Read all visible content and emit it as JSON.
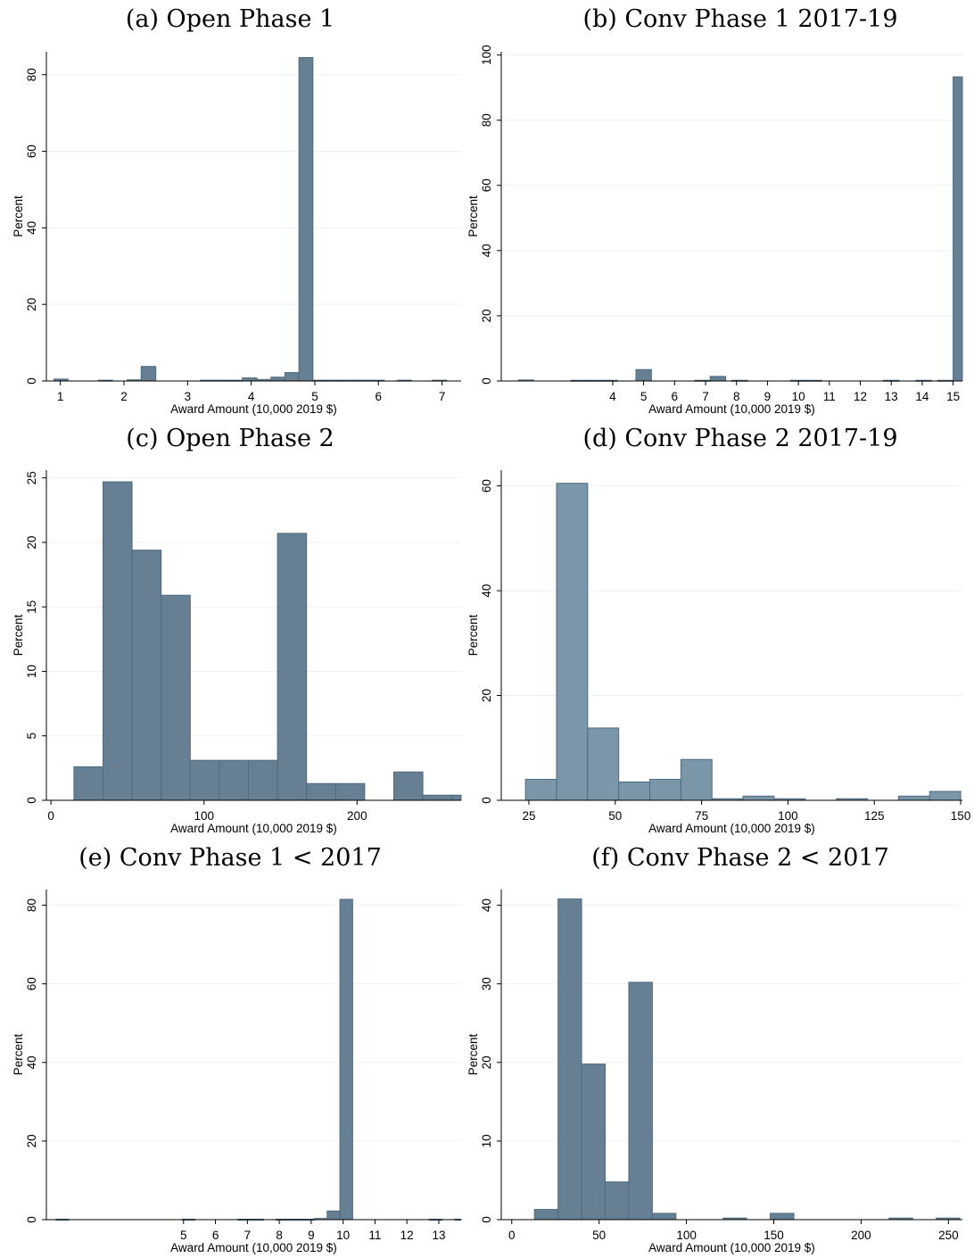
{
  "colors": {
    "bar_dark": "#667f93",
    "bar_light": "#7b96a9",
    "bar_edge": "#4f6b80",
    "grid": "#eef1f3",
    "background": "#ffffff"
  },
  "chart_data": [
    {
      "id": "a",
      "type": "bar",
      "title": "(a) Open Phase 1",
      "xlabel": "Award Amount (10,000 2019 $)",
      "ylabel": "Percent",
      "xlim": [
        0.78,
        7.3
      ],
      "ylim": [
        0,
        86
      ],
      "xticks": [
        1,
        2,
        3,
        4,
        5,
        6,
        7
      ],
      "yticks": [
        0,
        20,
        40,
        60,
        80
      ],
      "grid": true,
      "color": "#667f93",
      "bins": [
        {
          "x0": 0.9,
          "x1": 1.12,
          "y": 0.5
        },
        {
          "x0": 1.6,
          "x1": 1.82,
          "y": 0.2
        },
        {
          "x0": 2.05,
          "x1": 2.27,
          "y": 0.3
        },
        {
          "x0": 2.27,
          "x1": 2.5,
          "y": 3.8
        },
        {
          "x0": 3.2,
          "x1": 3.42,
          "y": 0.2
        },
        {
          "x0": 3.42,
          "x1": 3.64,
          "y": 0.2
        },
        {
          "x0": 3.64,
          "x1": 3.86,
          "y": 0.2
        },
        {
          "x0": 3.86,
          "x1": 4.09,
          "y": 0.8
        },
        {
          "x0": 4.09,
          "x1": 4.31,
          "y": 0.4
        },
        {
          "x0": 4.31,
          "x1": 4.53,
          "y": 1.0
        },
        {
          "x0": 4.53,
          "x1": 4.75,
          "y": 2.2
        },
        {
          "x0": 4.75,
          "x1": 4.97,
          "y": 84.5
        },
        {
          "x0": 4.97,
          "x1": 5.2,
          "y": 0.2
        },
        {
          "x0": 5.2,
          "x1": 5.42,
          "y": 0.2
        },
        {
          "x0": 5.42,
          "x1": 5.64,
          "y": 0.2
        },
        {
          "x0": 5.64,
          "x1": 5.86,
          "y": 0.2
        },
        {
          "x0": 5.86,
          "x1": 6.09,
          "y": 0.2
        },
        {
          "x0": 6.3,
          "x1": 6.52,
          "y": 0.2
        },
        {
          "x0": 6.85,
          "x1": 7.07,
          "y": 0.2
        }
      ]
    },
    {
      "id": "b",
      "type": "bar",
      "title": "(b) Conv Phase 1 2017-19",
      "xlabel": "Award Amount (10,000 2019 $)",
      "ylabel": "Percent",
      "xlim": [
        0.4,
        15.3
      ],
      "ylim": [
        0,
        101
      ],
      "xticks": [
        4,
        5,
        6,
        7,
        8,
        9,
        10,
        11,
        12,
        13,
        14,
        15
      ],
      "yticks": [
        0,
        20,
        40,
        60,
        80,
        100
      ],
      "grid": true,
      "color": "#667f93",
      "bins": [
        {
          "x0": 0.95,
          "x1": 1.45,
          "y": 0.3
        },
        {
          "x0": 2.65,
          "x1": 3.15,
          "y": 0.2
        },
        {
          "x0": 3.15,
          "x1": 3.65,
          "y": 0.2
        },
        {
          "x0": 3.65,
          "x1": 4.15,
          "y": 0.2
        },
        {
          "x0": 4.75,
          "x1": 5.25,
          "y": 3.5
        },
        {
          "x0": 6.65,
          "x1": 7.15,
          "y": 0.2
        },
        {
          "x0": 7.15,
          "x1": 7.65,
          "y": 1.4
        },
        {
          "x0": 7.85,
          "x1": 8.35,
          "y": 0.2
        },
        {
          "x0": 9.75,
          "x1": 10.25,
          "y": 0.2
        },
        {
          "x0": 10.25,
          "x1": 10.75,
          "y": 0.2
        },
        {
          "x0": 12.75,
          "x1": 13.25,
          "y": 0.2
        },
        {
          "x0": 13.8,
          "x1": 14.3,
          "y": 0.2
        },
        {
          "x0": 14.5,
          "x1": 15.0,
          "y": 0.2
        },
        {
          "x0": 15.0,
          "x1": 15.5,
          "y": 93.3
        }
      ]
    },
    {
      "id": "c",
      "type": "bar",
      "title": "(c) Open Phase 2",
      "xlabel": "Award Amount (10,000 2019 $)",
      "ylabel": "Percent",
      "xlim": [
        -3,
        268
      ],
      "ylim": [
        0,
        25.6
      ],
      "xticks": [
        0,
        100,
        200
      ],
      "yticks": [
        0,
        5,
        10,
        15,
        20,
        25
      ],
      "grid": true,
      "color": "#667f93",
      "bins": [
        {
          "x0": 15,
          "x1": 34,
          "y": 2.6
        },
        {
          "x0": 34,
          "x1": 53,
          "y": 24.7
        },
        {
          "x0": 53,
          "x1": 72,
          "y": 19.4
        },
        {
          "x0": 72,
          "x1": 91,
          "y": 15.9
        },
        {
          "x0": 91,
          "x1": 110,
          "y": 3.1
        },
        {
          "x0": 110,
          "x1": 129,
          "y": 3.1
        },
        {
          "x0": 129,
          "x1": 148,
          "y": 3.1
        },
        {
          "x0": 148,
          "x1": 167,
          "y": 20.7
        },
        {
          "x0": 167,
          "x1": 186,
          "y": 1.3
        },
        {
          "x0": 186,
          "x1": 205,
          "y": 1.3
        },
        {
          "x0": 224,
          "x1": 243,
          "y": 2.2
        },
        {
          "x0": 243,
          "x1": 262,
          "y": 0.4
        },
        {
          "x0": 262,
          "x1": 281,
          "y": 0.4
        }
      ]
    },
    {
      "id": "d",
      "type": "bar",
      "title": "(d) Conv Phase 2 2017-19",
      "xlabel": "Award Amount (10,000 2019 $)",
      "ylabel": "Percent",
      "xlim": [
        17,
        150.5
      ],
      "ylim": [
        0,
        63
      ],
      "xticks": [
        25,
        50,
        75,
        100,
        125,
        150
      ],
      "yticks": [
        0,
        20,
        40,
        60
      ],
      "grid": true,
      "color": "#7b96a9",
      "bins": [
        {
          "x0": 24,
          "x1": 33,
          "y": 4.0
        },
        {
          "x0": 33,
          "x1": 42,
          "y": 60.5
        },
        {
          "x0": 42,
          "x1": 51,
          "y": 13.8
        },
        {
          "x0": 51,
          "x1": 60,
          "y": 3.5
        },
        {
          "x0": 60,
          "x1": 69,
          "y": 4.0
        },
        {
          "x0": 69,
          "x1": 78,
          "y": 7.8
        },
        {
          "x0": 78,
          "x1": 87,
          "y": 0.3
        },
        {
          "x0": 87,
          "x1": 96,
          "y": 0.8
        },
        {
          "x0": 96,
          "x1": 105,
          "y": 0.3
        },
        {
          "x0": 114,
          "x1": 123,
          "y": 0.3
        },
        {
          "x0": 132,
          "x1": 141,
          "y": 0.8
        },
        {
          "x0": 141,
          "x1": 150,
          "y": 1.7
        }
      ]
    },
    {
      "id": "e",
      "type": "bar",
      "title": "(e) Conv Phase 1 < 2017",
      "xlabel": "Award Amount (10,000 2019 $)",
      "ylabel": "Percent",
      "xlim": [
        0.7,
        13.7
      ],
      "ylim": [
        0,
        84
      ],
      "xticks": [
        5,
        6,
        7,
        8,
        9,
        10,
        11,
        12,
        13
      ],
      "yticks": [
        0,
        20,
        40,
        60,
        80
      ],
      "grid": true,
      "color": "#667f93",
      "bins": [
        {
          "x0": 1.0,
          "x1": 1.4,
          "y": 0.1
        },
        {
          "x0": 4.95,
          "x1": 5.35,
          "y": 0.1
        },
        {
          "x0": 6.7,
          "x1": 7.1,
          "y": 0.1
        },
        {
          "x0": 7.1,
          "x1": 7.5,
          "y": 0.1
        },
        {
          "x0": 7.9,
          "x1": 8.3,
          "y": 0.1
        },
        {
          "x0": 8.3,
          "x1": 8.7,
          "y": 0.1
        },
        {
          "x0": 8.7,
          "x1": 9.1,
          "y": 0.1
        },
        {
          "x0": 9.1,
          "x1": 9.5,
          "y": 0.3
        },
        {
          "x0": 9.5,
          "x1": 9.9,
          "y": 2.2
        },
        {
          "x0": 9.9,
          "x1": 10.3,
          "y": 81.5
        },
        {
          "x0": 12.7,
          "x1": 13.1,
          "y": 0.1
        },
        {
          "x0": 13.5,
          "x1": 13.9,
          "y": 0.1
        }
      ]
    },
    {
      "id": "f",
      "type": "bar",
      "title": "(f) Conv Phase 2 < 2017",
      "xlabel": "Award Amount (10,000 2019 $)",
      "ylabel": "Percent",
      "xlim": [
        -6,
        258
      ],
      "ylim": [
        0,
        42
      ],
      "xticks": [
        0,
        50,
        100,
        150,
        200,
        250
      ],
      "yticks": [
        0,
        10,
        20,
        30,
        40
      ],
      "grid": true,
      "color": "#667f93",
      "bins": [
        {
          "x0": 13,
          "x1": 26.5,
          "y": 1.3
        },
        {
          "x0": 26.5,
          "x1": 40,
          "y": 40.8
        },
        {
          "x0": 40,
          "x1": 53.5,
          "y": 19.8
        },
        {
          "x0": 53.5,
          "x1": 67,
          "y": 4.8
        },
        {
          "x0": 67,
          "x1": 80.5,
          "y": 30.2
        },
        {
          "x0": 80.5,
          "x1": 94,
          "y": 0.8
        },
        {
          "x0": 121,
          "x1": 134.5,
          "y": 0.2
        },
        {
          "x0": 148,
          "x1": 161.5,
          "y": 0.8
        },
        {
          "x0": 216,
          "x1": 229.5,
          "y": 0.2
        },
        {
          "x0": 243,
          "x1": 256.5,
          "y": 0.2
        }
      ]
    }
  ]
}
